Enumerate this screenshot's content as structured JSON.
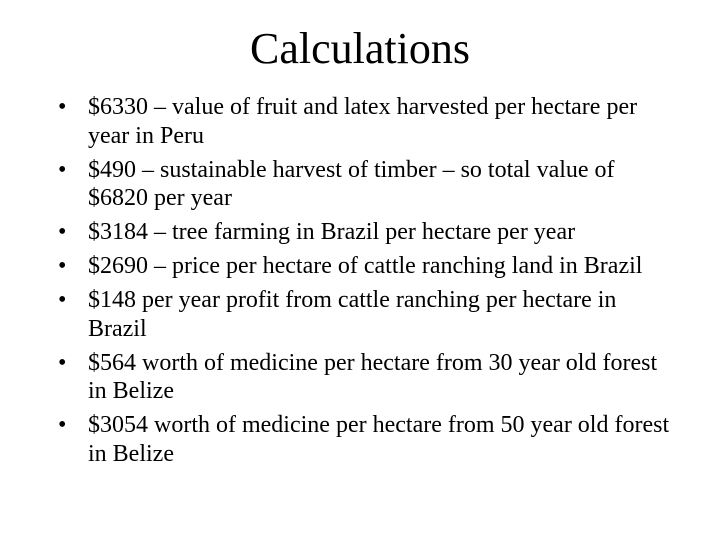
{
  "slide": {
    "title": "Calculations",
    "bullet_symbol": "•",
    "bullets": [
      "$6330 – value of fruit and latex harvested per hectare per year in Peru",
      "$490 – sustainable harvest of timber – so total value of $6820 per year",
      "$3184 – tree farming in Brazil per hectare per year",
      "$2690 – price per hectare of cattle ranching land in Brazil",
      "$148 per year profit from cattle ranching per hectare in Brazil",
      "$564 worth of medicine per hectare from 30 year old forest in Belize",
      "$3054 worth of medicine per hectare from 50 year old forest in Belize"
    ]
  }
}
